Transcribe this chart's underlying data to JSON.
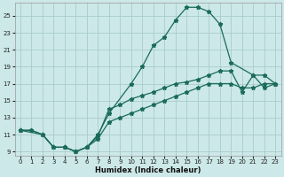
{
  "xlabel": "Humidex (Indice chaleur)",
  "bg_color": "#cce8e8",
  "grid_color": "#aacccc",
  "line_color": "#1a6b5a",
  "xlim": [
    -0.5,
    23.5
  ],
  "ylim": [
    8.5,
    26.5
  ],
  "xticks": [
    0,
    1,
    2,
    3,
    4,
    5,
    6,
    7,
    8,
    9,
    10,
    11,
    12,
    13,
    14,
    15,
    16,
    17,
    18,
    19,
    20,
    21,
    22,
    23
  ],
  "yticks": [
    9,
    11,
    13,
    15,
    17,
    19,
    21,
    23,
    25
  ],
  "line_peak_x": [
    0,
    2,
    3,
    4,
    5,
    6,
    7,
    8,
    10,
    11,
    12,
    13,
    14,
    15,
    16,
    17,
    18,
    19,
    21,
    22,
    23
  ],
  "line_peak_y": [
    11.5,
    11.0,
    9.5,
    9.5,
    9.0,
    9.5,
    11.0,
    13.5,
    17.0,
    19.0,
    21.5,
    22.5,
    24.5,
    26.0,
    26.0,
    25.5,
    24.0,
    19.5,
    18.0,
    18.0,
    17.0
  ],
  "line_upper_x": [
    0,
    1,
    2,
    3,
    4,
    5,
    6,
    7,
    8,
    9,
    10,
    11,
    12,
    13,
    14,
    15,
    16,
    17,
    18,
    19,
    20,
    21,
    22,
    23
  ],
  "line_upper_y": [
    11.5,
    11.5,
    11.0,
    9.5,
    9.5,
    9.0,
    9.5,
    10.8,
    14.0,
    14.5,
    15.2,
    15.6,
    16.0,
    16.5,
    17.0,
    17.2,
    17.5,
    18.0,
    18.5,
    18.5,
    16.0,
    18.0,
    16.5,
    17.0
  ],
  "line_lower_x": [
    0,
    1,
    2,
    3,
    4,
    5,
    6,
    7,
    8,
    9,
    10,
    11,
    12,
    13,
    14,
    15,
    16,
    17,
    18,
    19,
    20,
    21,
    22,
    23
  ],
  "line_lower_y": [
    11.5,
    11.5,
    11.0,
    9.5,
    9.5,
    9.0,
    9.5,
    10.5,
    12.5,
    13.0,
    13.5,
    14.0,
    14.5,
    15.0,
    15.5,
    16.0,
    16.5,
    17.0,
    17.0,
    17.0,
    16.5,
    16.5,
    17.0,
    17.0
  ]
}
